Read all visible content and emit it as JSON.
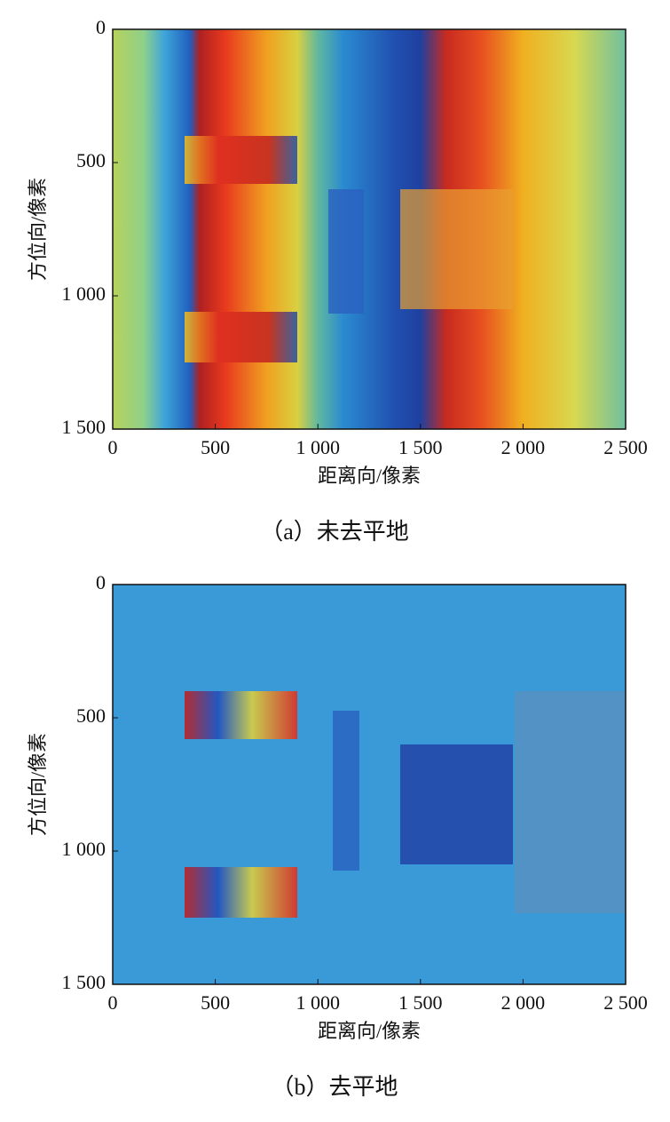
{
  "chart_data": [
    {
      "type": "image",
      "title": "（a）未去平地",
      "xlabel": "距离向/像素",
      "ylabel": "方位向/像素",
      "xlim": [
        0,
        2500
      ],
      "ylim": [
        1500,
        0
      ],
      "xticks": [
        0,
        500,
        {
          "value": 1000,
          "label": "1 000"
        },
        {
          "value": 1500,
          "label": "1 500"
        },
        {
          "value": 2000,
          "label": "2 000"
        },
        {
          "value": 2500,
          "label": "2 500"
        }
      ],
      "yticks": [
        0,
        500,
        {
          "value": 1000,
          "label": "1 000"
        },
        {
          "value": 1500,
          "label": "1 500"
        }
      ]
    },
    {
      "type": "image",
      "title": "（b）去平地",
      "xlabel": "距离向/像素",
      "ylabel": "方位向/像素",
      "xlim": [
        0,
        2500
      ],
      "ylim": [
        1500,
        0
      ],
      "xticks": [
        0,
        500,
        {
          "value": 1000,
          "label": "1 000"
        },
        {
          "value": 1500,
          "label": "1 500"
        },
        {
          "value": 2000,
          "label": "2 000"
        },
        {
          "value": 2500,
          "label": "2 500"
        }
      ],
      "yticks": [
        0,
        500,
        {
          "value": 1000,
          "label": "1 000"
        },
        {
          "value": 1500,
          "label": "1 500"
        }
      ]
    }
  ]
}
